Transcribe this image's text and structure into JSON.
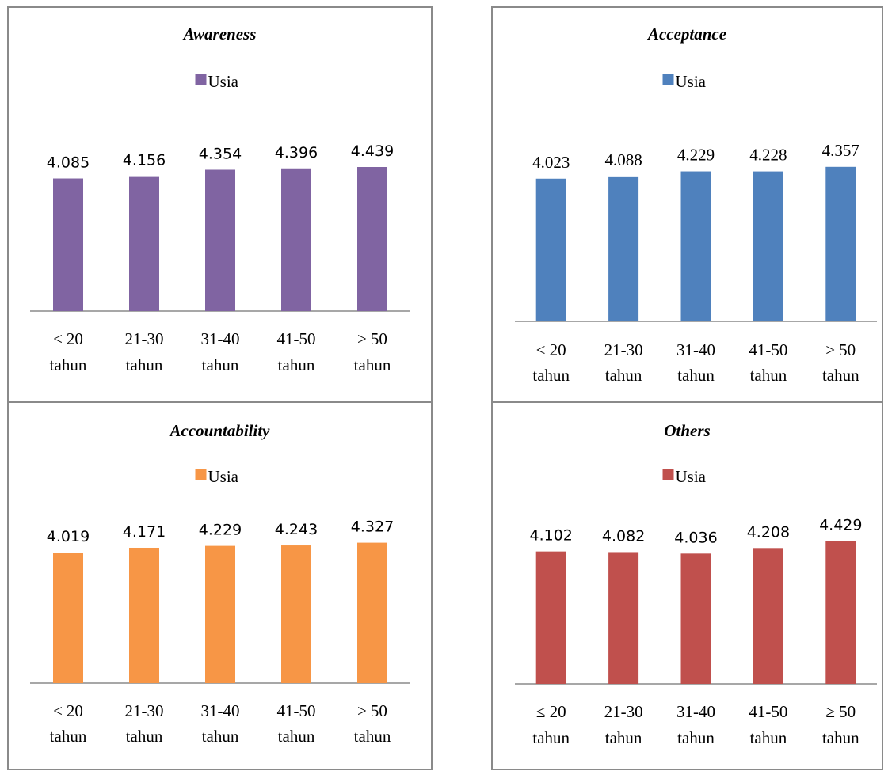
{
  "chart_data": [
    {
      "type": "bar",
      "title": "Awareness",
      "legend": "Usia",
      "color": "#8064A2",
      "value_font": "sans",
      "categories": [
        [
          "≤ 20",
          "tahun"
        ],
        [
          "21-30",
          "tahun"
        ],
        [
          "31-40",
          "tahun"
        ],
        [
          "41-50",
          "tahun"
        ],
        [
          "≥ 50",
          "tahun"
        ]
      ],
      "values": [
        4.085,
        4.156,
        4.354,
        4.396,
        4.439
      ],
      "value_labels": [
        "4.085",
        "4.156",
        "4.354",
        "4.396",
        "4.439"
      ],
      "legend_placement": "top",
      "grid": false
    },
    {
      "type": "bar",
      "title": "Acceptance",
      "legend": "Usia",
      "color": "#4F81BD",
      "value_font": "serif",
      "categories": [
        [
          "≤ 20",
          "tahun"
        ],
        [
          "21-30",
          "tahun"
        ],
        [
          "31-40",
          "tahun"
        ],
        [
          "41-50",
          "tahun"
        ],
        [
          "≥ 50",
          "tahun"
        ]
      ],
      "values": [
        4.023,
        4.088,
        4.229,
        4.228,
        4.357
      ],
      "value_labels": [
        "4.023",
        "4.088",
        "4.229",
        "4.228",
        "4.357"
      ],
      "legend_placement": "top",
      "grid": false
    },
    {
      "type": "bar",
      "title": "Accountability",
      "legend": "Usia",
      "color": "#F79646",
      "value_font": "sans",
      "categories": [
        [
          "≤ 20",
          "tahun"
        ],
        [
          "21-30",
          "tahun"
        ],
        [
          "31-40",
          "tahun"
        ],
        [
          "41-50",
          "tahun"
        ],
        [
          "≥ 50",
          "tahun"
        ]
      ],
      "values": [
        4.019,
        4.171,
        4.229,
        4.243,
        4.327
      ],
      "value_labels": [
        "4.019",
        "4.171",
        "4.229",
        "4.243",
        "4.327"
      ],
      "legend_placement": "top",
      "grid": false
    },
    {
      "type": "bar",
      "title": "Others",
      "legend": "Usia",
      "color": "#C0504D",
      "value_font": "sans",
      "categories": [
        [
          "≤ 20",
          "tahun"
        ],
        [
          "21-30",
          "tahun"
        ],
        [
          "31-40",
          "tahun"
        ],
        [
          "41-50",
          "tahun"
        ],
        [
          "≥ 50",
          "tahun"
        ]
      ],
      "values": [
        4.102,
        4.082,
        4.036,
        4.208,
        4.429
      ],
      "value_labels": [
        "4.102",
        "4.082",
        "4.036",
        "4.208",
        "4.429"
      ],
      "legend_placement": "top",
      "grid": false
    }
  ]
}
